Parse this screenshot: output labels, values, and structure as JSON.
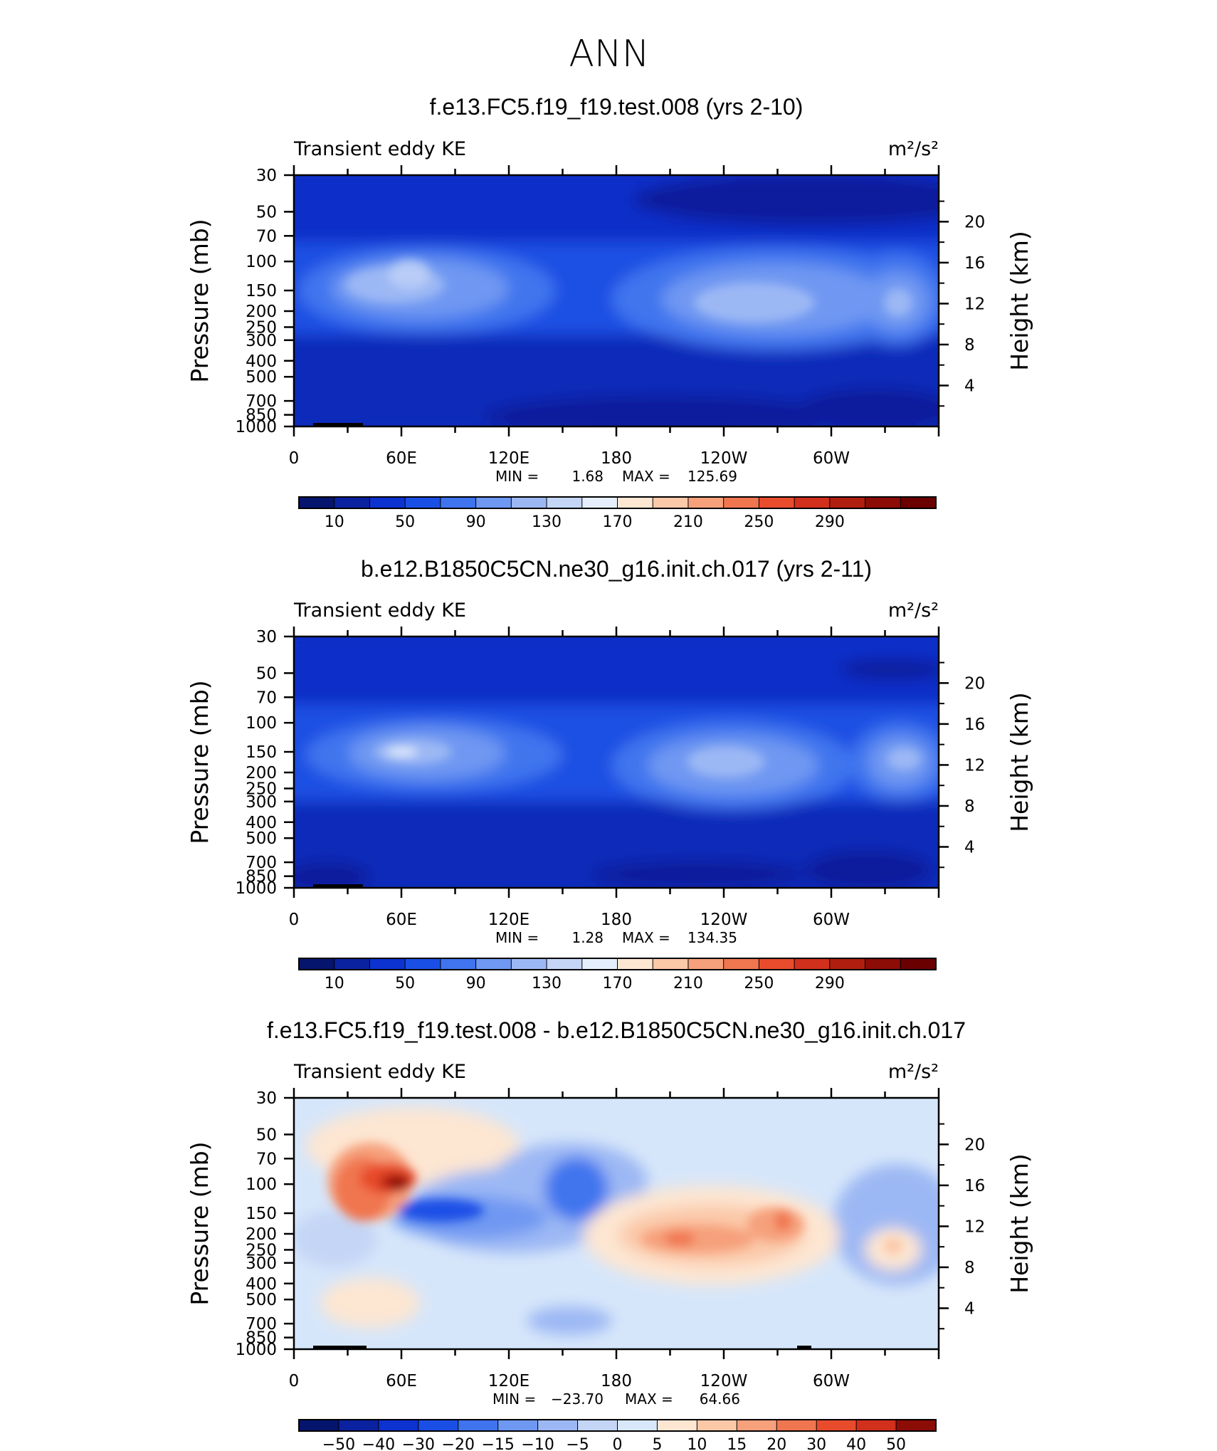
{
  "page_title": "ANN",
  "panels": [
    {
      "title": "f.e13.FC5.f19_f19.test.008 (yrs 2-10)",
      "left_label": "Transient eddy KE",
      "units": "m²/s²",
      "stats_min_label": "MIN =",
      "stats_min": "1.68",
      "stats_max_label": "MAX =",
      "stats_max": "125.69"
    },
    {
      "title": "b.e12.B1850C5CN.ne30_g16.init.ch.017 (yrs 2-11)",
      "left_label": "Transient eddy KE",
      "units": "m²/s²",
      "stats_min_label": "MIN =",
      "stats_min": "1.28",
      "stats_max_label": "MAX =",
      "stats_max": "134.35"
    },
    {
      "title": "f.e13.FC5.f19_f19.test.008 - b.e12.B1850C5CN.ne30_g16.init.ch.017",
      "left_label": "Transient eddy KE",
      "units": "m²/s²",
      "stats_min_label": "MIN =",
      "stats_min": "−23.70",
      "stats_max_label": "MAX =",
      "stats_max": "64.66"
    }
  ],
  "chart_data": [
    {
      "type": "heatmap",
      "title": "f.e13.FC5.f19_f19.test.008 (yrs 2-10)",
      "variable": "Transient eddy KE",
      "units": "m2/s2",
      "xlabel": "",
      "ylabel": "Pressure (mb)",
      "ylabel_right": "Height (km)",
      "x_ticks": [
        "0",
        "60E",
        "120E",
        "180",
        "120W",
        "60W"
      ],
      "y_ticks": [
        "30",
        "50",
        "70",
        "100",
        "150",
        "200",
        "250",
        "300",
        "400",
        "500",
        "700",
        "850",
        "1000"
      ],
      "y2_ticks": [
        "20",
        "16",
        "12",
        "8",
        "4"
      ],
      "ylim": [
        1000,
        30
      ],
      "min": 1.68,
      "max": 125.69,
      "colorbar_labels": [
        "10",
        "50",
        "90",
        "130",
        "170",
        "210",
        "250",
        "290"
      ],
      "colorbar_colors": [
        "#05146c",
        "#0a22a0",
        "#0c32d0",
        "#1a4fe6",
        "#3f74ee",
        "#6f98f2",
        "#9cb8f4",
        "#c4d5f6",
        "#e4eefc",
        "#fde6d2",
        "#fbc8a8",
        "#f6a07c",
        "#f07650",
        "#e84c2c",
        "#d0301c",
        "#b01e10",
        "#8c0c06",
        "#6a0000"
      ]
    },
    {
      "type": "heatmap",
      "title": "b.e12.B1850C5CN.ne30_g16.init.ch.017 (yrs 2-11)",
      "variable": "Transient eddy KE",
      "units": "m2/s2",
      "xlabel": "",
      "ylabel": "Pressure (mb)",
      "ylabel_right": "Height (km)",
      "x_ticks": [
        "0",
        "60E",
        "120E",
        "180",
        "120W",
        "60W"
      ],
      "y_ticks": [
        "30",
        "50",
        "70",
        "100",
        "150",
        "200",
        "250",
        "300",
        "400",
        "500",
        "700",
        "850",
        "1000"
      ],
      "y2_ticks": [
        "20",
        "16",
        "12",
        "8",
        "4"
      ],
      "ylim": [
        1000,
        30
      ],
      "min": 1.28,
      "max": 134.35,
      "colorbar_labels": [
        "10",
        "50",
        "90",
        "130",
        "170",
        "210",
        "250",
        "290"
      ],
      "colorbar_colors": [
        "#05146c",
        "#0a22a0",
        "#0c32d0",
        "#1a4fe6",
        "#3f74ee",
        "#6f98f2",
        "#9cb8f4",
        "#c4d5f6",
        "#e4eefc",
        "#fde6d2",
        "#fbc8a8",
        "#f6a07c",
        "#f07650",
        "#e84c2c",
        "#d0301c",
        "#b01e10",
        "#8c0c06",
        "#6a0000"
      ]
    },
    {
      "type": "heatmap",
      "title": "f.e13.FC5.f19_f19.test.008 - b.e12.B1850C5CN.ne30_g16.init.ch.017",
      "variable": "Transient eddy KE",
      "units": "m2/s2",
      "xlabel": "",
      "ylabel": "Pressure (mb)",
      "ylabel_right": "Height (km)",
      "x_ticks": [
        "0",
        "60E",
        "120E",
        "180",
        "120W",
        "60W"
      ],
      "y_ticks": [
        "30",
        "50",
        "70",
        "100",
        "150",
        "200",
        "250",
        "300",
        "400",
        "500",
        "700",
        "850",
        "1000"
      ],
      "y2_ticks": [
        "20",
        "16",
        "12",
        "8",
        "4"
      ],
      "ylim": [
        1000,
        30
      ],
      "min": -23.7,
      "max": 64.66,
      "colorbar_labels": [
        "−50",
        "−40",
        "−30",
        "−20",
        "−15",
        "−10",
        "−5",
        "0",
        "5",
        "10",
        "15",
        "20",
        "30",
        "40",
        "50"
      ],
      "colorbar_colors": [
        "#05146c",
        "#0a22a0",
        "#0c32d0",
        "#1a4fe6",
        "#3f74ee",
        "#6f98f2",
        "#9cb8f4",
        "#c4d5f6",
        "#d8e8fa",
        "#fde6d2",
        "#fbc8a8",
        "#f6a07c",
        "#f07650",
        "#e84c2c",
        "#d0301c",
        "#8c0c06"
      ]
    }
  ]
}
